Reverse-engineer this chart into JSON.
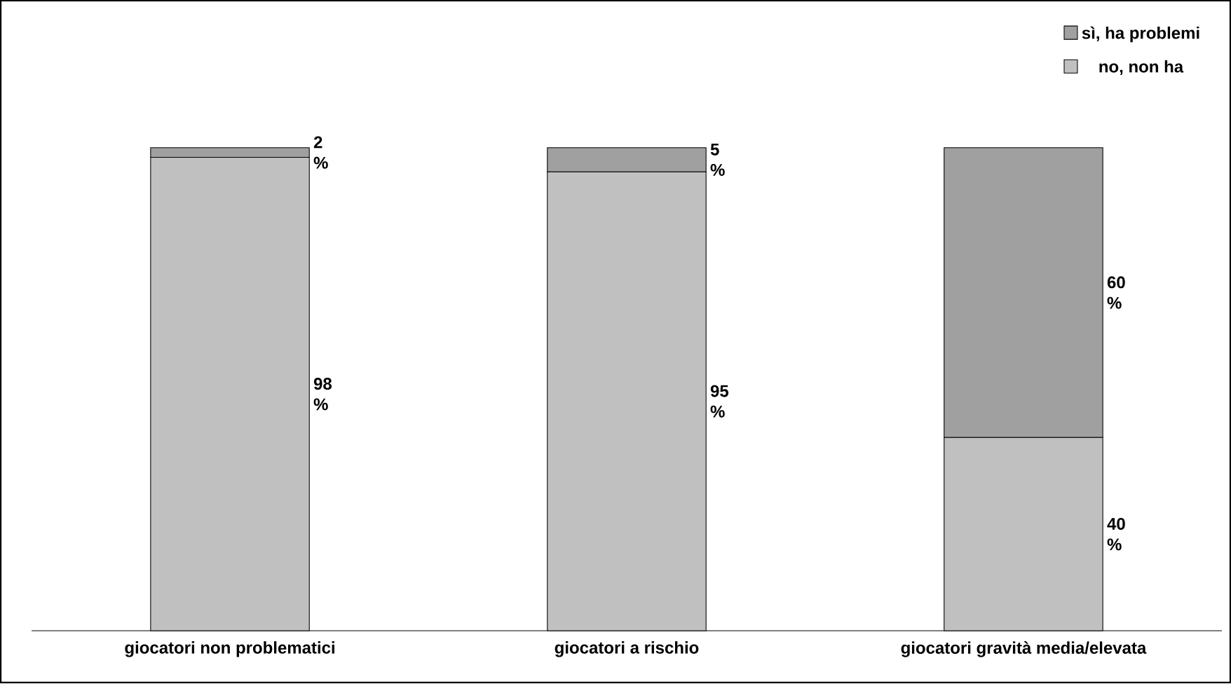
{
  "chart_data": {
    "type": "bar",
    "stacked": true,
    "categories": [
      "giocatori non problematici",
      "giocatori a rischio",
      "giocatori gravità media/elevata"
    ],
    "series": [
      {
        "name": "no, non ha",
        "color": "#c0c0c0",
        "values": [
          98,
          95,
          40
        ],
        "value_labels": [
          "98 %",
          "95 %",
          "40 %"
        ]
      },
      {
        "name": "sì, ha problemi",
        "color": "#a0a0a0",
        "values": [
          2,
          5,
          60
        ],
        "value_labels": [
          "2 %",
          "5 %",
          "60 %"
        ]
      }
    ],
    "legend": "top right"
  }
}
